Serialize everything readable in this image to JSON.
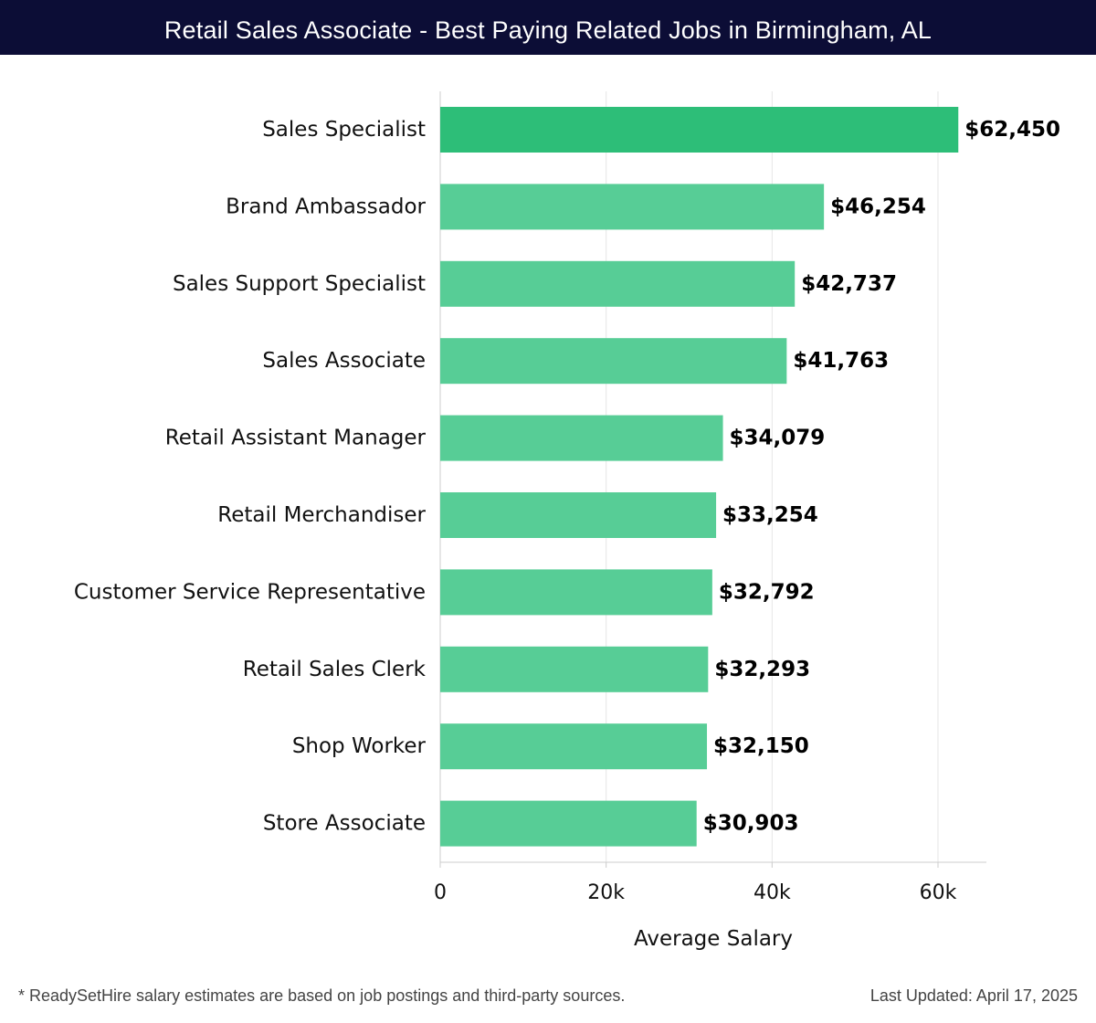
{
  "header": {
    "title": "Retail Sales Associate - Best Paying Related Jobs in Birmingham, AL"
  },
  "chart_data": {
    "type": "bar",
    "orientation": "horizontal",
    "title": "Retail Sales Associate - Best Paying Related Jobs in Birmingham, AL",
    "xlabel": "Average Salary",
    "ylabel": "",
    "xlim": [
      0,
      65000
    ],
    "grid": true,
    "categories": [
      "Sales Specialist",
      "Brand Ambassador",
      "Sales Support Specialist",
      "Sales Associate",
      "Retail Assistant Manager",
      "Retail Merchandiser",
      "Customer Service Representative",
      "Retail Sales Clerk",
      "Shop Worker",
      "Store Associate"
    ],
    "values": [
      62450,
      46254,
      42737,
      41763,
      34079,
      33254,
      32792,
      32293,
      32150,
      30903
    ],
    "value_labels": [
      "$62,450",
      "$46,254",
      "$42,737",
      "$41,763",
      "$34,079",
      "$33,254",
      "$32,792",
      "$32,293",
      "$32,150",
      "$30,903"
    ],
    "x_ticks": [
      0,
      20000,
      40000,
      60000
    ],
    "x_tick_labels": [
      "0",
      "20k",
      "40k",
      "60k"
    ],
    "colors": {
      "top_bar": "#2dbe78",
      "bar": "#57cd96",
      "grid": "#e6e6e6",
      "axis": "#cccccc"
    }
  },
  "footer": {
    "note": "* ReadySetHire salary estimates are based on job postings and third-party sources.",
    "updated": "Last Updated: April 17, 2025"
  }
}
